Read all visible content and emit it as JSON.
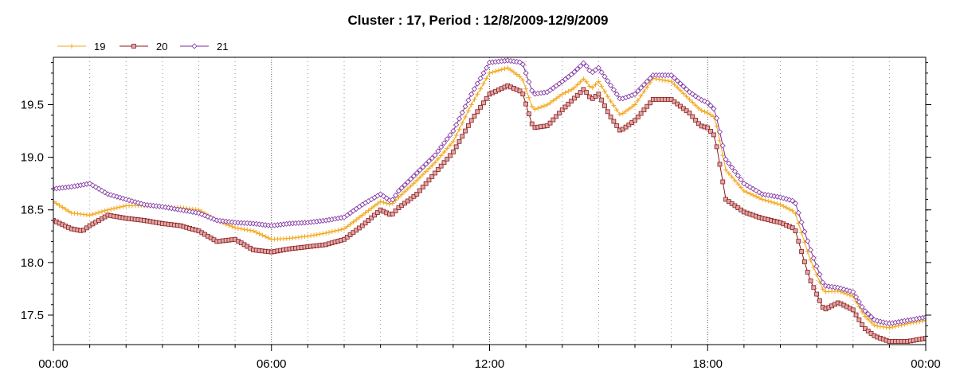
{
  "chart_data": {
    "type": "line",
    "title": "Cluster : 17, Period : 12/8/2009-12/9/2009",
    "xlabel": "",
    "ylabel": "",
    "x_ticks": [
      0,
      6,
      12,
      18,
      24
    ],
    "x_tick_labels": [
      "00:00",
      "06:00",
      "12:00",
      "18:00",
      "00:00"
    ],
    "xlim": [
      0,
      24
    ],
    "ylim": [
      17.22,
      19.95
    ],
    "y_ticks": [
      17.5,
      18.0,
      18.5,
      19.0,
      19.5
    ],
    "y_tick_labels": [
      "17.5",
      "18.0",
      "18.5",
      "19.0",
      "19.5"
    ],
    "grid": "vertical dotted every 1h, solid every 6h",
    "legend_position": "top-left",
    "series": [
      {
        "name": "19",
        "color": "#f2a81d",
        "marker": "plus",
        "points": [
          [
            0,
            18.58
          ],
          [
            0.5,
            18.47
          ],
          [
            1,
            18.45
          ],
          [
            1.5,
            18.5
          ],
          [
            2,
            18.54
          ],
          [
            2.5,
            18.54
          ],
          [
            3,
            18.53
          ],
          [
            3.5,
            18.52
          ],
          [
            4,
            18.5
          ],
          [
            4.5,
            18.4
          ],
          [
            5,
            18.33
          ],
          [
            5.5,
            18.3
          ],
          [
            6,
            18.22
          ],
          [
            6.5,
            18.23
          ],
          [
            7,
            18.25
          ],
          [
            7.5,
            18.28
          ],
          [
            8,
            18.32
          ],
          [
            8.5,
            18.45
          ],
          [
            9,
            18.58
          ],
          [
            9.3,
            18.55
          ],
          [
            9.5,
            18.62
          ],
          [
            10,
            18.78
          ],
          [
            10.5,
            18.95
          ],
          [
            11,
            19.15
          ],
          [
            11.5,
            19.5
          ],
          [
            12,
            19.8
          ],
          [
            12.5,
            19.85
          ],
          [
            12.9,
            19.75
          ],
          [
            13.2,
            19.45
          ],
          [
            13.6,
            19.5
          ],
          [
            14,
            19.6
          ],
          [
            14.3,
            19.65
          ],
          [
            14.6,
            19.75
          ],
          [
            14.8,
            19.65
          ],
          [
            15,
            19.72
          ],
          [
            15.3,
            19.55
          ],
          [
            15.6,
            19.4
          ],
          [
            16,
            19.5
          ],
          [
            16.5,
            19.75
          ],
          [
            17,
            19.72
          ],
          [
            17.5,
            19.55
          ],
          [
            17.8,
            19.45
          ],
          [
            18,
            19.42
          ],
          [
            18.2,
            19.38
          ],
          [
            18.5,
            18.88
          ],
          [
            19,
            18.68
          ],
          [
            19.5,
            18.6
          ],
          [
            20,
            18.55
          ],
          [
            20.4,
            18.48
          ],
          [
            20.8,
            18.05
          ],
          [
            21.2,
            17.72
          ],
          [
            21.6,
            17.73
          ],
          [
            22,
            17.68
          ],
          [
            22.3,
            17.5
          ],
          [
            22.6,
            17.4
          ],
          [
            23,
            17.38
          ],
          [
            23.5,
            17.42
          ],
          [
            24,
            17.45
          ]
        ]
      },
      {
        "name": "20",
        "color": "#8b1a1a",
        "marker_fill": "#e0a8a8",
        "marker": "square",
        "points": [
          [
            0,
            18.4
          ],
          [
            0.5,
            18.32
          ],
          [
            0.8,
            18.3
          ],
          [
            1,
            18.35
          ],
          [
            1.5,
            18.45
          ],
          [
            2,
            18.42
          ],
          [
            2.5,
            18.4
          ],
          [
            3,
            18.37
          ],
          [
            3.5,
            18.35
          ],
          [
            4,
            18.3
          ],
          [
            4.5,
            18.2
          ],
          [
            5,
            18.22
          ],
          [
            5.5,
            18.12
          ],
          [
            6,
            18.1
          ],
          [
            6.5,
            18.13
          ],
          [
            7,
            18.15
          ],
          [
            7.5,
            18.17
          ],
          [
            8,
            18.22
          ],
          [
            8.5,
            18.35
          ],
          [
            9,
            18.5
          ],
          [
            9.3,
            18.45
          ],
          [
            9.5,
            18.52
          ],
          [
            10,
            18.65
          ],
          [
            10.5,
            18.85
          ],
          [
            11,
            19.05
          ],
          [
            11.5,
            19.35
          ],
          [
            12,
            19.6
          ],
          [
            12.5,
            19.68
          ],
          [
            12.9,
            19.62
          ],
          [
            13.2,
            19.28
          ],
          [
            13.6,
            19.3
          ],
          [
            14,
            19.45
          ],
          [
            14.3,
            19.55
          ],
          [
            14.6,
            19.65
          ],
          [
            14.8,
            19.55
          ],
          [
            15,
            19.6
          ],
          [
            15.3,
            19.4
          ],
          [
            15.6,
            19.25
          ],
          [
            16,
            19.35
          ],
          [
            16.5,
            19.55
          ],
          [
            17,
            19.55
          ],
          [
            17.5,
            19.42
          ],
          [
            17.8,
            19.3
          ],
          [
            18,
            19.28
          ],
          [
            18.2,
            19.2
          ],
          [
            18.5,
            18.6
          ],
          [
            19,
            18.48
          ],
          [
            19.5,
            18.42
          ],
          [
            20,
            18.38
          ],
          [
            20.4,
            18.32
          ],
          [
            20.8,
            17.85
          ],
          [
            21.2,
            17.55
          ],
          [
            21.6,
            17.62
          ],
          [
            22,
            17.55
          ],
          [
            22.3,
            17.38
          ],
          [
            22.6,
            17.3
          ],
          [
            23,
            17.25
          ],
          [
            23.5,
            17.25
          ],
          [
            24,
            17.28
          ]
        ]
      },
      {
        "name": "21",
        "color": "#7b2ea0",
        "marker": "diamond",
        "points": [
          [
            0,
            18.7
          ],
          [
            0.5,
            18.72
          ],
          [
            1,
            18.75
          ],
          [
            1.5,
            18.65
          ],
          [
            2,
            18.6
          ],
          [
            2.5,
            18.55
          ],
          [
            3,
            18.53
          ],
          [
            3.5,
            18.5
          ],
          [
            4,
            18.47
          ],
          [
            4.5,
            18.4
          ],
          [
            5,
            18.38
          ],
          [
            5.5,
            18.37
          ],
          [
            6,
            18.35
          ],
          [
            6.5,
            18.37
          ],
          [
            7,
            18.38
          ],
          [
            7.5,
            18.4
          ],
          [
            8,
            18.43
          ],
          [
            8.5,
            18.55
          ],
          [
            9,
            18.65
          ],
          [
            9.3,
            18.58
          ],
          [
            9.5,
            18.68
          ],
          [
            10,
            18.85
          ],
          [
            10.5,
            19.02
          ],
          [
            11,
            19.25
          ],
          [
            11.5,
            19.6
          ],
          [
            12,
            19.9
          ],
          [
            12.5,
            19.92
          ],
          [
            12.9,
            19.9
          ],
          [
            13.2,
            19.6
          ],
          [
            13.6,
            19.62
          ],
          [
            14,
            19.72
          ],
          [
            14.3,
            19.8
          ],
          [
            14.6,
            19.9
          ],
          [
            14.8,
            19.8
          ],
          [
            15,
            19.85
          ],
          [
            15.3,
            19.7
          ],
          [
            15.6,
            19.55
          ],
          [
            16,
            19.6
          ],
          [
            16.5,
            19.78
          ],
          [
            17,
            19.78
          ],
          [
            17.5,
            19.62
          ],
          [
            17.8,
            19.55
          ],
          [
            18,
            19.52
          ],
          [
            18.2,
            19.45
          ],
          [
            18.5,
            18.98
          ],
          [
            19,
            18.75
          ],
          [
            19.5,
            18.65
          ],
          [
            20,
            18.62
          ],
          [
            20.4,
            18.58
          ],
          [
            20.8,
            18.15
          ],
          [
            21.2,
            17.78
          ],
          [
            21.6,
            17.76
          ],
          [
            22,
            17.72
          ],
          [
            22.3,
            17.55
          ],
          [
            22.6,
            17.45
          ],
          [
            23,
            17.42
          ],
          [
            23.5,
            17.45
          ],
          [
            24,
            17.48
          ]
        ]
      }
    ]
  }
}
